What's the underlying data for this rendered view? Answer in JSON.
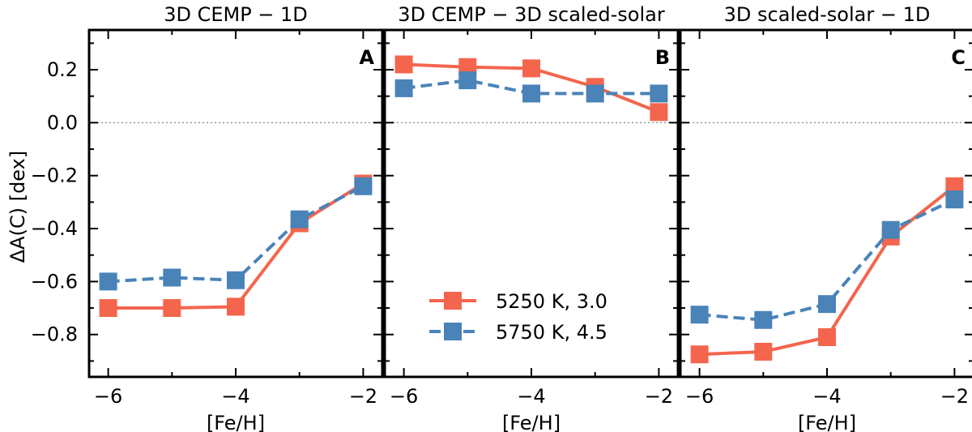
{
  "ylabel": "ΔA(C) [dex]",
  "xlabel": "[Fe/H]",
  "series_styles": [
    {
      "name": "5250 K, 3.0",
      "color": "#f4654e",
      "dash": "solid"
    },
    {
      "name": "5750 K, 4.5",
      "color": "#4a83b8",
      "dash": "dashed"
    }
  ],
  "legend": [
    "5250 K, 3.0",
    "5750 K, 4.5"
  ],
  "y_ticks": [
    "0.2",
    "0.0",
    "−0.2",
    "−0.4",
    "−0.6",
    "−0.8"
  ],
  "x_ticks": [
    "−6",
    "−4",
    "−2"
  ],
  "chart_data": [
    {
      "type": "line",
      "title": "3D CEMP − 1D",
      "panel_label": "A",
      "xlabel": "[Fe/H]",
      "ylabel": "ΔA(C) [dex]",
      "xlim": [
        -6.3,
        -1.7
      ],
      "ylim": [
        -0.96,
        0.35
      ],
      "x": [
        -6,
        -5,
        -4,
        -3,
        -2
      ],
      "series": [
        {
          "name": "5250 K, 3.0",
          "values": [
            -0.7,
            -0.7,
            -0.695,
            -0.38,
            -0.23
          ]
        },
        {
          "name": "5750 K, 4.5",
          "values": [
            -0.6,
            -0.585,
            -0.595,
            -0.365,
            -0.24
          ]
        }
      ]
    },
    {
      "type": "line",
      "title": "3D CEMP − 3D scaled-solar",
      "panel_label": "B",
      "xlabel": "[Fe/H]",
      "ylabel": "",
      "xlim": [
        -6.3,
        -1.7
      ],
      "ylim": [
        -0.96,
        0.35
      ],
      "x": [
        -6,
        -5,
        -4,
        -3,
        -2
      ],
      "series": [
        {
          "name": "5250 K, 3.0",
          "values": [
            0.22,
            0.21,
            0.205,
            0.135,
            0.04
          ]
        },
        {
          "name": "5750 K, 4.5",
          "values": [
            0.13,
            0.16,
            0.11,
            0.11,
            0.11
          ]
        }
      ]
    },
    {
      "type": "line",
      "title": "3D scaled-solar − 1D",
      "panel_label": "C",
      "xlabel": "[Fe/H]",
      "ylabel": "",
      "xlim": [
        -6.3,
        -1.7
      ],
      "ylim": [
        -0.96,
        0.35
      ],
      "x": [
        -6,
        -5,
        -4,
        -3,
        -2
      ],
      "series": [
        {
          "name": "5250 K, 3.0",
          "values": [
            -0.875,
            -0.865,
            -0.81,
            -0.43,
            -0.24
          ]
        },
        {
          "name": "5750 K, 4.5",
          "values": [
            -0.725,
            -0.745,
            -0.685,
            -0.405,
            -0.29
          ]
        }
      ]
    }
  ]
}
